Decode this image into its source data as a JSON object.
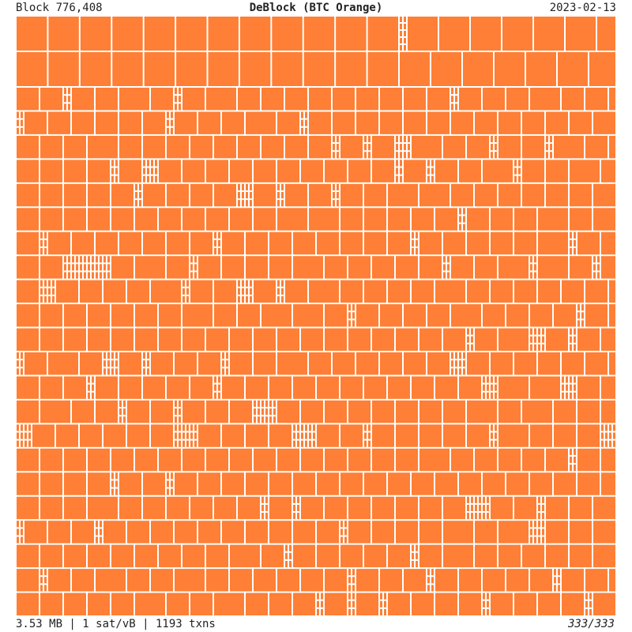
{
  "header": {
    "left": "Block 776,408",
    "title": "DeBlock (BTC Orange)",
    "right": "2023-02-13"
  },
  "footer": {
    "left": "3.53 MB | 1 sat/vB | 1193 txns",
    "right": "333/333"
  }
}
